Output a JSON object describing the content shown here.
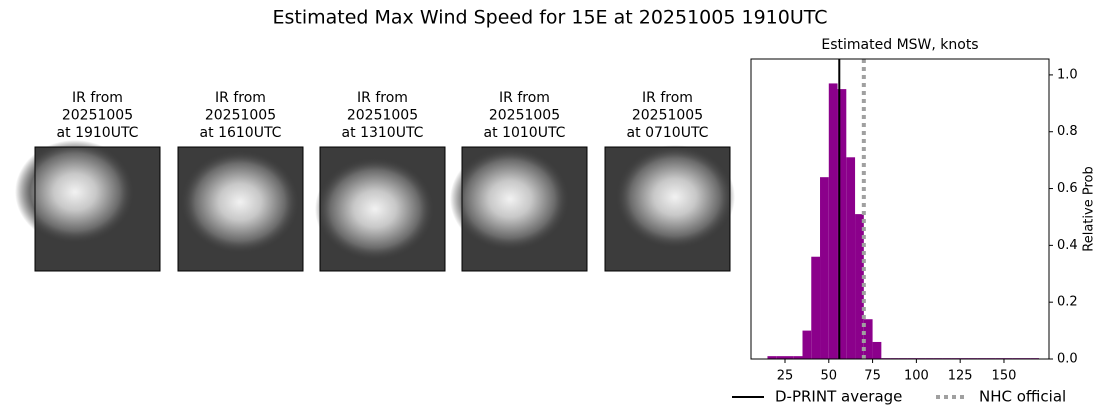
{
  "title": "Estimated Max Wind Speed for 15E at 20251005 1910UTC",
  "panels": [
    {
      "label": [
        "IR from",
        "20251005",
        "at 1910UTC"
      ]
    },
    {
      "label": [
        "IR from",
        "20251005",
        "at 1610UTC"
      ]
    },
    {
      "label": [
        "IR from",
        "20251005",
        "at 1310UTC"
      ]
    },
    {
      "label": [
        "IR from",
        "20251005",
        "at 1010UTC"
      ]
    },
    {
      "label": [
        "IR from",
        "20251005",
        "at 0710UTC"
      ]
    }
  ],
  "chart_data": {
    "type": "histogram",
    "title": "Estimated MSW, knots",
    "ylabel": "Relative Prob",
    "y_axis_side": "right",
    "color": "#8b008b",
    "bins": [
      15,
      20,
      25,
      30,
      35,
      40,
      45,
      50,
      55,
      60,
      65,
      70,
      75,
      80,
      85,
      90,
      95,
      100,
      105,
      110,
      115,
      120,
      125,
      130,
      135,
      140,
      145,
      150,
      155,
      160,
      165,
      170
    ],
    "values": [
      0.01,
      0.01,
      0.01,
      0.01,
      0.1,
      0.36,
      0.64,
      0.97,
      0.95,
      0.71,
      0.51,
      0.14,
      0.06,
      0.003,
      0.003,
      0.003,
      0.003,
      0.003,
      0.003,
      0.003,
      0.003,
      0.003,
      0.003,
      0.003,
      0.003,
      0.003,
      0.003,
      0.003,
      0.003,
      0.003,
      0.003
    ],
    "xlim": [
      5.6,
      175.7
    ],
    "xticks": [
      25,
      50,
      75,
      100,
      125,
      150
    ],
    "ylim": [
      0,
      1.056
    ],
    "yticks": [
      {
        "value": 0,
        "label": "0.0"
      },
      {
        "value": 0.2,
        "label": "0.2"
      },
      {
        "value": 0.4,
        "label": "0.4"
      },
      {
        "value": 0.6,
        "label": "0.6"
      },
      {
        "value": 0.8,
        "label": "0.8"
      },
      {
        "value": 1,
        "label": "1.0"
      }
    ],
    "lines": [
      {
        "name": "D-PRINT average",
        "x": 56,
        "color": "#000000",
        "style": "solid"
      },
      {
        "name": "NHC official",
        "x": 70,
        "color": "#a0a0a0",
        "style": "dotted"
      }
    ]
  }
}
